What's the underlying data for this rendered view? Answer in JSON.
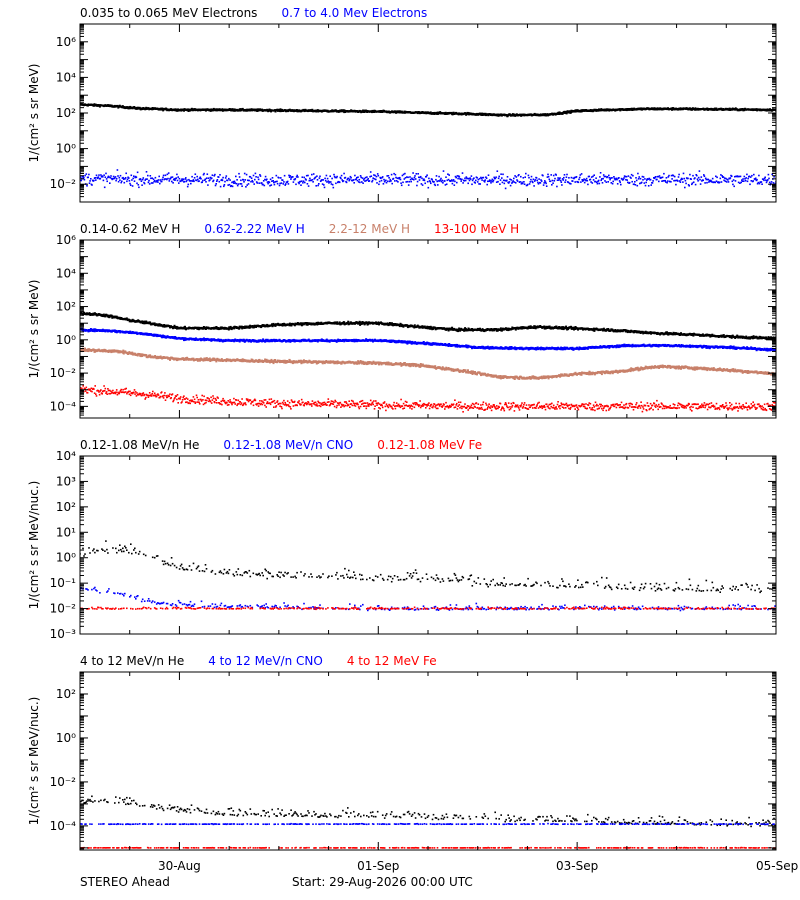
{
  "footer": {
    "mission_label": "STEREO Ahead",
    "start_label": "Start: 29-Aug-2026 00:00 UTC"
  },
  "time_axis": {
    "tick_labels": [
      "30-Aug",
      "01-Sep",
      "03-Sep",
      "05-Sep"
    ],
    "tick_day_offsets": [
      1,
      3,
      5,
      7
    ],
    "minor_every_hours": 12,
    "range_days": [
      0.0,
      7.0
    ]
  },
  "chart_data": [
    {
      "type": "scatter",
      "id": "panel-electrons",
      "ylabel": "1/(cm² s sr MeV)",
      "yscale": "log",
      "ylim": [
        0.001,
        10000000
      ],
      "yticks": [
        0.01,
        1,
        100,
        10000,
        1000000
      ],
      "ytick_labels": [
        "10⁻²",
        "10⁰",
        "10²",
        "10⁴",
        "10⁶"
      ],
      "series": [
        {
          "name": "0.035 to 0.065 MeV Electrons",
          "color": "#000000",
          "style": "line",
          "x": [
            0.0,
            0.3,
            0.6,
            1.0,
            1.5,
            2.0,
            2.5,
            3.0,
            3.5,
            3.9,
            4.3,
            4.7,
            5.0,
            5.3,
            5.7,
            6.0,
            6.5,
            7.0
          ],
          "y": [
            300,
            250,
            180,
            150,
            150,
            140,
            130,
            120,
            100,
            90,
            75,
            80,
            130,
            150,
            170,
            170,
            160,
            150
          ],
          "scatter": 0.05
        },
        {
          "name": "0.7 to 4.0 Mev Electrons",
          "color": "#0000ff",
          "style": "noisy",
          "x": [
            0.0,
            1.0,
            2.0,
            3.0,
            4.0,
            5.0,
            6.0,
            7.0
          ],
          "y": [
            0.02,
            0.018,
            0.017,
            0.018,
            0.017,
            0.018,
            0.018,
            0.018
          ],
          "scatter": 0.35
        }
      ]
    },
    {
      "type": "scatter",
      "id": "panel-protons",
      "ylabel": "1/(cm² s sr MeV)",
      "yscale": "log",
      "ylim": [
        2e-05,
        1000000
      ],
      "yticks": [
        0.0001,
        0.01,
        1,
        100,
        10000,
        1000000
      ],
      "ytick_labels": [
        "10⁻⁴",
        "10⁻²",
        "10⁰",
        "10²",
        "10⁴",
        "10⁶"
      ],
      "series": [
        {
          "name": "0.14-0.62 MeV H",
          "color": "#000000",
          "style": "line",
          "x": [
            0.0,
            0.25,
            0.5,
            0.8,
            1.0,
            1.5,
            2.0,
            2.5,
            3.0,
            3.4,
            3.8,
            4.2,
            4.6,
            4.9,
            5.3,
            5.8,
            6.2,
            6.6,
            7.0
          ],
          "y": [
            40,
            30,
            15,
            8,
            5,
            5,
            8,
            10,
            10,
            6,
            4,
            4,
            6,
            5,
            4,
            2.5,
            2,
            1.5,
            1.2
          ],
          "scatter": 0.07
        },
        {
          "name": "0.62-2.22 MeV H",
          "color": "#0000ff",
          "style": "line",
          "x": [
            0.0,
            0.3,
            0.6,
            1.0,
            1.5,
            2.0,
            2.5,
            3.0,
            3.5,
            4.0,
            4.5,
            5.0,
            5.5,
            6.0,
            6.5,
            7.0
          ],
          "y": [
            4,
            3.5,
            2.5,
            1.2,
            0.9,
            0.9,
            0.9,
            0.9,
            0.6,
            0.35,
            0.3,
            0.3,
            0.45,
            0.45,
            0.35,
            0.25
          ],
          "scatter": 0.06
        },
        {
          "name": "2.2-12 MeV H",
          "color": "#c8806a",
          "style": "line",
          "x": [
            0.0,
            0.4,
            0.7,
            1.0,
            1.5,
            2.0,
            2.5,
            3.0,
            3.4,
            3.8,
            4.2,
            4.6,
            5.0,
            5.4,
            5.8,
            6.2,
            6.6,
            7.0
          ],
          "y": [
            0.25,
            0.2,
            0.1,
            0.07,
            0.06,
            0.05,
            0.045,
            0.04,
            0.03,
            0.015,
            0.006,
            0.005,
            0.009,
            0.012,
            0.025,
            0.02,
            0.014,
            0.009
          ],
          "scatter": 0.08
        },
        {
          "name": "13-100 MeV H",
          "color": "#ff0000",
          "style": "noisy",
          "x": [
            0.0,
            0.3,
            0.7,
            1.0,
            1.5,
            2.0,
            3.0,
            4.0,
            5.0,
            6.0,
            7.0
          ],
          "y": [
            0.001,
            0.0008,
            0.0005,
            0.0003,
            0.0002,
            0.00015,
            0.00012,
            0.0001,
            0.0001,
            0.0001,
            0.0001
          ],
          "scatter": 0.25
        }
      ]
    },
    {
      "type": "scatter",
      "id": "panel-ions-low",
      "ylabel": "1/(cm² s sr MeV/nuc.)",
      "yscale": "log",
      "ylim": [
        0.001,
        10000
      ],
      "yticks": [
        0.001,
        0.01,
        0.1,
        1,
        10,
        100,
        1000,
        10000
      ],
      "ytick_labels": [
        "10⁻³",
        "10⁻²",
        "10⁻¹",
        "10⁰",
        "10¹",
        "10²",
        "10³",
        "10⁴"
      ],
      "series": [
        {
          "name": "0.12-1.08 MeV/n He",
          "color": "#000000",
          "style": "sparse",
          "x": [
            0.0,
            0.3,
            0.6,
            0.9,
            1.2,
            1.6,
            2.0,
            2.5,
            3.0,
            3.5,
            4.0,
            5.0,
            6.0,
            7.0
          ],
          "y": [
            1.5,
            2.2,
            1.5,
            0.6,
            0.3,
            0.25,
            0.2,
            0.2,
            0.15,
            0.15,
            0.1,
            0.08,
            0.06,
            0.06
          ],
          "scatter": 0.3
        },
        {
          "name": "0.12-1.08 MeV/n CNO",
          "color": "#0000ff",
          "style": "sparse",
          "x": [
            0.0,
            0.4,
            0.8,
            1.5,
            3.0,
            5.0,
            7.0
          ],
          "y": [
            0.06,
            0.04,
            0.015,
            0.012,
            0.01,
            0.01,
            0.01
          ],
          "scatter": 0.15
        },
        {
          "name": "0.12-1.08 MeV Fe",
          "color": "#ff0000",
          "style": "sparse",
          "x": [
            0.0,
            1.0,
            2.0,
            3.0,
            4.0,
            5.0,
            6.0,
            7.0
          ],
          "y": [
            0.01,
            0.01,
            0.01,
            0.01,
            0.01,
            0.01,
            0.01,
            0.01
          ],
          "scatter": 0.05
        }
      ]
    },
    {
      "type": "scatter",
      "id": "panel-ions-high",
      "ylabel": "1/(cm² s sr MeV/nuc.)",
      "yscale": "log",
      "ylim": [
        8e-06,
        1000
      ],
      "yticks": [
        0.0001,
        0.01,
        1,
        100
      ],
      "ytick_labels": [
        "10⁻⁴",
        "10⁻²",
        "10⁰",
        "10²"
      ],
      "series": [
        {
          "name": "4 to 12 MeV/n He",
          "color": "#000000",
          "style": "sparse",
          "x": [
            0.0,
            0.4,
            0.8,
            1.2,
            1.7,
            2.5,
            3.5,
            4.5,
            5.5,
            6.5,
            7.0
          ],
          "y": [
            0.0015,
            0.0012,
            0.0007,
            0.0004,
            0.00035,
            0.0003,
            0.00025,
            0.0002,
            0.00015,
            0.00013,
            0.00012
          ],
          "scatter": 0.25
        },
        {
          "name": "4 to 12 MeV/n CNO",
          "color": "#0000ff",
          "style": "sparse",
          "x": [
            0.0,
            2.0,
            4.0,
            7.0
          ],
          "y": [
            0.00012,
            0.00012,
            0.00012,
            0.00012
          ],
          "scatter": 0.02
        },
        {
          "name": "4 to 12 MeV Fe",
          "color": "#ff0000",
          "style": "sparse",
          "x": [
            0.0,
            7.0
          ],
          "y": [
            1e-05,
            1e-05
          ],
          "scatter": 0.01
        }
      ]
    }
  ]
}
